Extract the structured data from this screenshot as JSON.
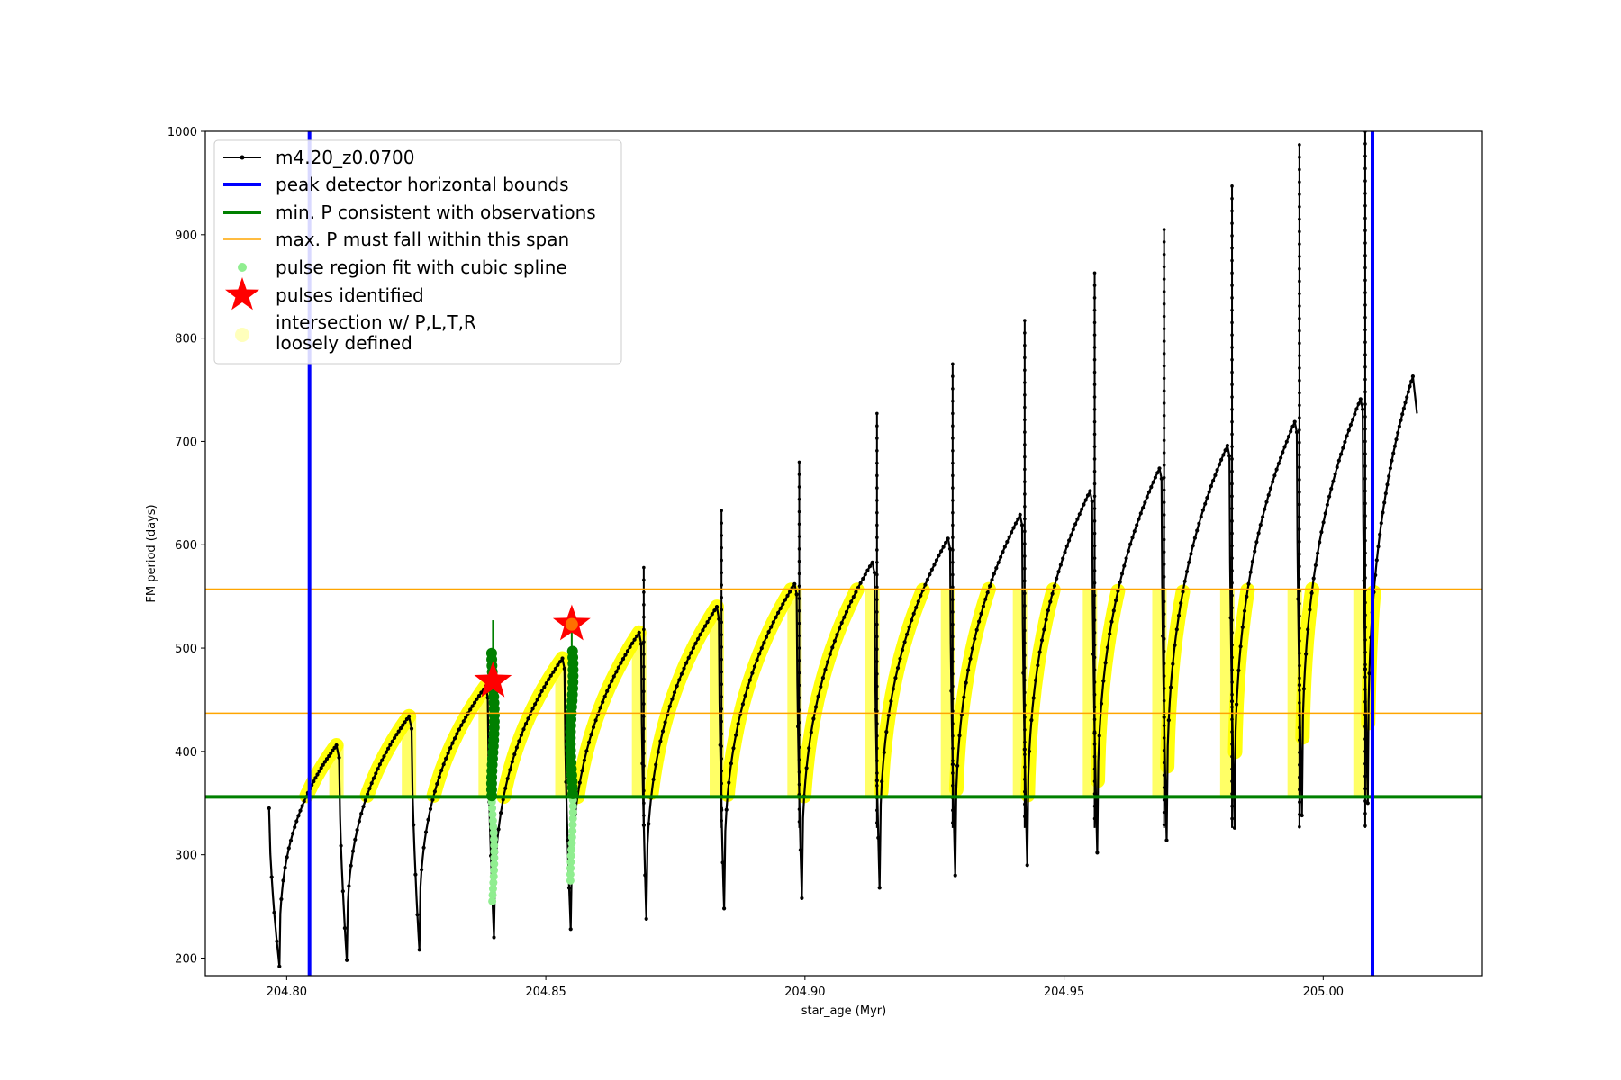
{
  "chart_data": {
    "type": "line",
    "title": "",
    "xlabel": "star_age (Myr)",
    "ylabel": "FM period (days)",
    "xlim": [
      204.7843,
      205.0307
    ],
    "ylim": [
      183,
      1000
    ],
    "grid": false,
    "legend_position": "top-left",
    "x_ticks": [
      204.8,
      204.85,
      204.9,
      204.95,
      205.0
    ],
    "x_tick_labels": [
      "204.80",
      "204.85",
      "204.90",
      "204.95",
      "205.00"
    ],
    "y_ticks": [
      200,
      300,
      400,
      500,
      600,
      700,
      800,
      900,
      1000
    ],
    "y_tick_labels": [
      "200",
      "300",
      "400",
      "500",
      "600",
      "700",
      "800",
      "900",
      "1000"
    ],
    "colors": {
      "track": "#000000",
      "bounds": "#0000ff",
      "min_p": "#008000",
      "max_p": "#ffa500",
      "spline": "#90ee90",
      "pulse": "#ff0000",
      "intersection": "#ffff00",
      "green_points": "#008000"
    },
    "series": [
      {
        "name": "m4.20_z0.0700",
        "type": "line-with-markers",
        "cycles": [
          [
            204.7966,
            345,
            204.7986,
            192,
            204.8096,
            406
          ],
          [
            204.8101,
            394,
            204.8116,
            198,
            204.8236,
            434
          ],
          [
            204.8241,
            422,
            204.8256,
            208,
            204.8384,
            463
          ],
          [
            204.8388,
            452,
            204.84,
            220,
            204.8532,
            490
          ],
          [
            204.8536,
            480,
            204.8548,
            228,
            204.868,
            515
          ],
          [
            204.8684,
            504,
            204.8694,
            238,
            204.883,
            540
          ],
          [
            204.8834,
            528,
            204.8844,
            248,
            204.898,
            562
          ],
          [
            204.8984,
            552,
            204.8994,
            258,
            204.913,
            583
          ],
          [
            204.9134,
            573,
            204.9144,
            268,
            204.9276,
            606
          ],
          [
            204.928,
            596,
            204.929,
            280,
            204.9415,
            629
          ],
          [
            204.9419,
            619,
            204.9429,
            290,
            204.955,
            652
          ],
          [
            204.9554,
            642,
            204.9564,
            302,
            204.9684,
            674
          ],
          [
            204.9688,
            664,
            204.9698,
            314,
            204.9815,
            696
          ],
          [
            204.9819,
            686,
            204.9829,
            326,
            204.9945,
            719
          ],
          [
            204.9949,
            709,
            204.9959,
            338,
            205.0072,
            741
          ],
          [
            205.0076,
            731,
            205.0086,
            350,
            205.0173,
            763
          ]
        ],
        "end_point": [
          205.0181,
          727
        ],
        "spikes": [
          [
            204.8689,
            578
          ],
          [
            204.8839,
            633
          ],
          [
            204.8989,
            680
          ],
          [
            204.9139,
            727
          ],
          [
            204.9285,
            775
          ],
          [
            204.9424,
            817
          ],
          [
            204.9559,
            863
          ],
          [
            204.9693,
            905
          ],
          [
            204.9824,
            947
          ],
          [
            204.9954,
            987
          ],
          [
            205.0081,
            1000
          ]
        ]
      },
      {
        "name": "peak detector horizontal bounds",
        "type": "vline",
        "x": [
          204.8044,
          205.0095
        ]
      },
      {
        "name": "min. P consistent with observations",
        "type": "hline",
        "y": 356
      },
      {
        "name": "max. P must fall within this span",
        "type": "hline",
        "y": [
          437,
          557
        ]
      },
      {
        "name": "pulse region fit with cubic spline",
        "type": "scatter",
        "spans": [
          [
            204.8398,
            255,
            497
          ],
          [
            204.855,
            275,
            497
          ]
        ]
      },
      {
        "name": "pulses identified",
        "type": "scatter",
        "points": [
          [
            204.8398,
            468
          ],
          [
            204.855,
            523
          ]
        ]
      },
      {
        "name": "intersection w/ P,L,T,R\nloosely defined",
        "type": "scatter",
        "y_range": [
          356,
          557
        ]
      }
    ]
  }
}
